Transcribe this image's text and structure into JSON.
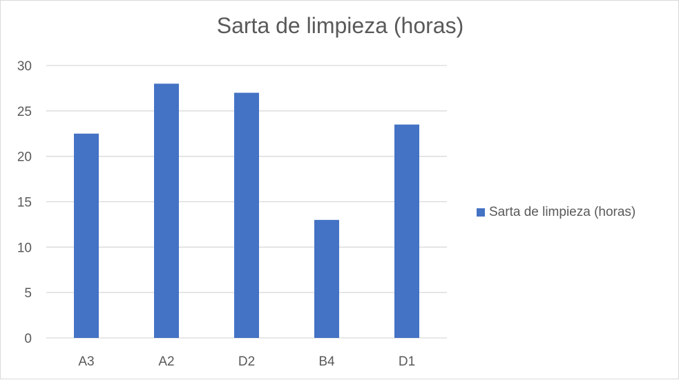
{
  "chart_data": {
    "type": "bar",
    "title": "Sarta de limpieza (horas)",
    "categories": [
      "A3",
      "A2",
      "D2",
      "B4",
      "D1"
    ],
    "series": [
      {
        "name": "Sarta de limpieza (horas)",
        "values": [
          22.5,
          28,
          27,
          13,
          23.5
        ],
        "color": "#4472c4"
      }
    ],
    "y_ticks": [
      "0",
      "5",
      "10",
      "15",
      "20",
      "25",
      "30"
    ],
    "ylim": [
      0,
      30
    ],
    "xlabel": "",
    "ylabel": "",
    "grid": true,
    "legend_position": "right"
  }
}
